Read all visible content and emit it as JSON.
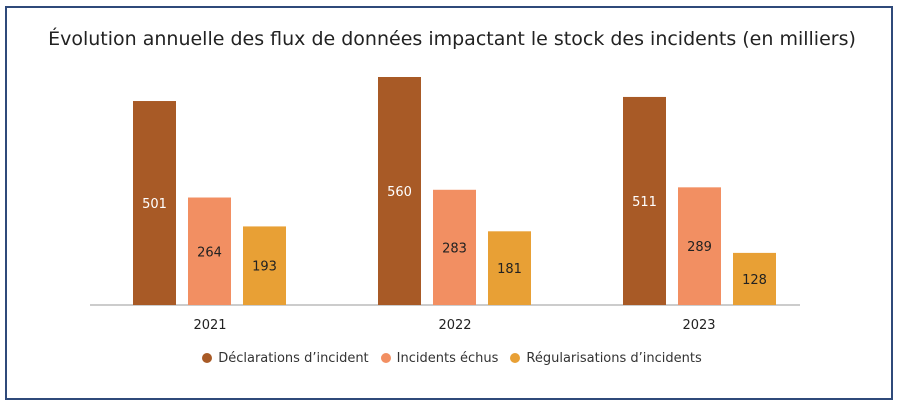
{
  "chart_data": {
    "type": "bar",
    "title": "Évolution annuelle des flux de données impactant le stock des incidents (en milliers)",
    "categories": [
      "2021",
      "2022",
      "2023"
    ],
    "series": [
      {
        "name": "Déclarations d’incident",
        "values": [
          501,
          560,
          511
        ],
        "color": "#a85a26",
        "label_color": "#ffffff"
      },
      {
        "name": "Incidents échus",
        "values": [
          264,
          283,
          289
        ],
        "color": "#f28f62",
        "label_color": "#222222"
      },
      {
        "name": "Régularisations d’incidents",
        "values": [
          193,
          181,
          128
        ],
        "color": "#e8a035",
        "label_color": "#222222"
      }
    ],
    "ylim": [
      0,
      560
    ],
    "legend_position": "bottom",
    "grid": false
  }
}
